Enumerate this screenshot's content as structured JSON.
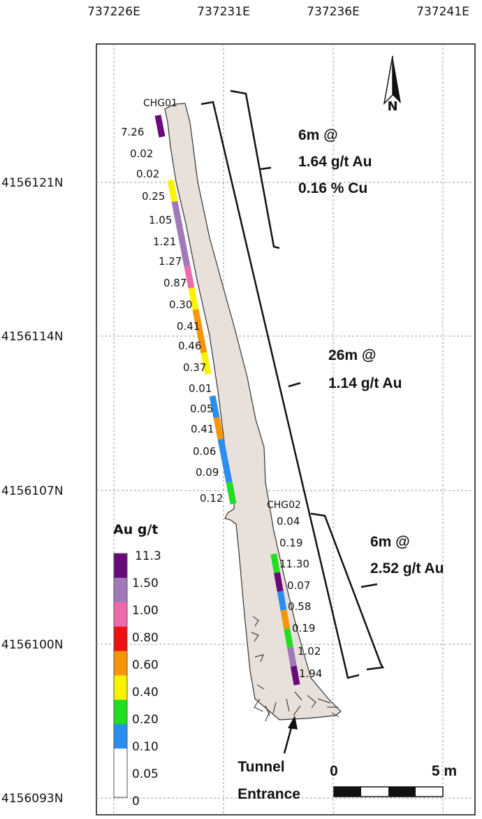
{
  "axes": {
    "easting": [
      "737226E",
      "737231E",
      "737236E",
      "737241E"
    ],
    "northing": [
      "4156121N",
      "4156114N",
      "4156107N",
      "4156100N",
      "4156093N"
    ]
  },
  "channels": {
    "chg01": "CHG01",
    "chg02": "CHG02"
  },
  "samples": {
    "chg01": [
      "7.26",
      "0.02",
      "0.02",
      "0.25",
      "1.05",
      "1.21",
      "1.27",
      "0.87",
      "0.30",
      "0.41",
      "0.46",
      "0.37",
      "0.01",
      "0.05",
      "0.41",
      "0.06",
      "0.09",
      "0.12"
    ],
    "chg02": [
      "0.04",
      "0.19",
      "11.30",
      "0.07",
      "0.58",
      "0.19",
      "1.02",
      "1.94"
    ]
  },
  "intercepts": {
    "top": {
      "line1": "6m @",
      "line2": "1.64 g/t Au",
      "line3": "0.16 % Cu"
    },
    "middle": {
      "line1": "26m @",
      "line2": "1.14 g/t Au"
    },
    "bottom": {
      "line1": "6m @",
      "line2": "2.52 g/t Au"
    }
  },
  "legend": {
    "title": "Au g/t",
    "classes": [
      {
        "label": "11.3",
        "color": "#6a0a7a"
      },
      {
        "label": "1.50",
        "color": "#a07ab8"
      },
      {
        "label": "1.00",
        "color": "#ee6bab"
      },
      {
        "label": "0.80",
        "color": "#ee1111"
      },
      {
        "label": "0.60",
        "color": "#f5960a"
      },
      {
        "label": "0.40",
        "color": "#fbf200"
      },
      {
        "label": "0.20",
        "color": "#22dd22"
      },
      {
        "label": "0.10",
        "color": "#2a8ef0"
      },
      {
        "label": "0.05",
        "color": "#ffffff"
      },
      {
        "label": "0",
        "color": "#ffffff"
      }
    ]
  },
  "labels": {
    "tunnel_line1": "Tunnel",
    "tunnel_line2": "Entrance",
    "north": "N",
    "scale_start": "0",
    "scale_end": "5 m"
  },
  "colors": {
    "tunnel_fill": "#e8e0da",
    "grid": "#999999"
  }
}
